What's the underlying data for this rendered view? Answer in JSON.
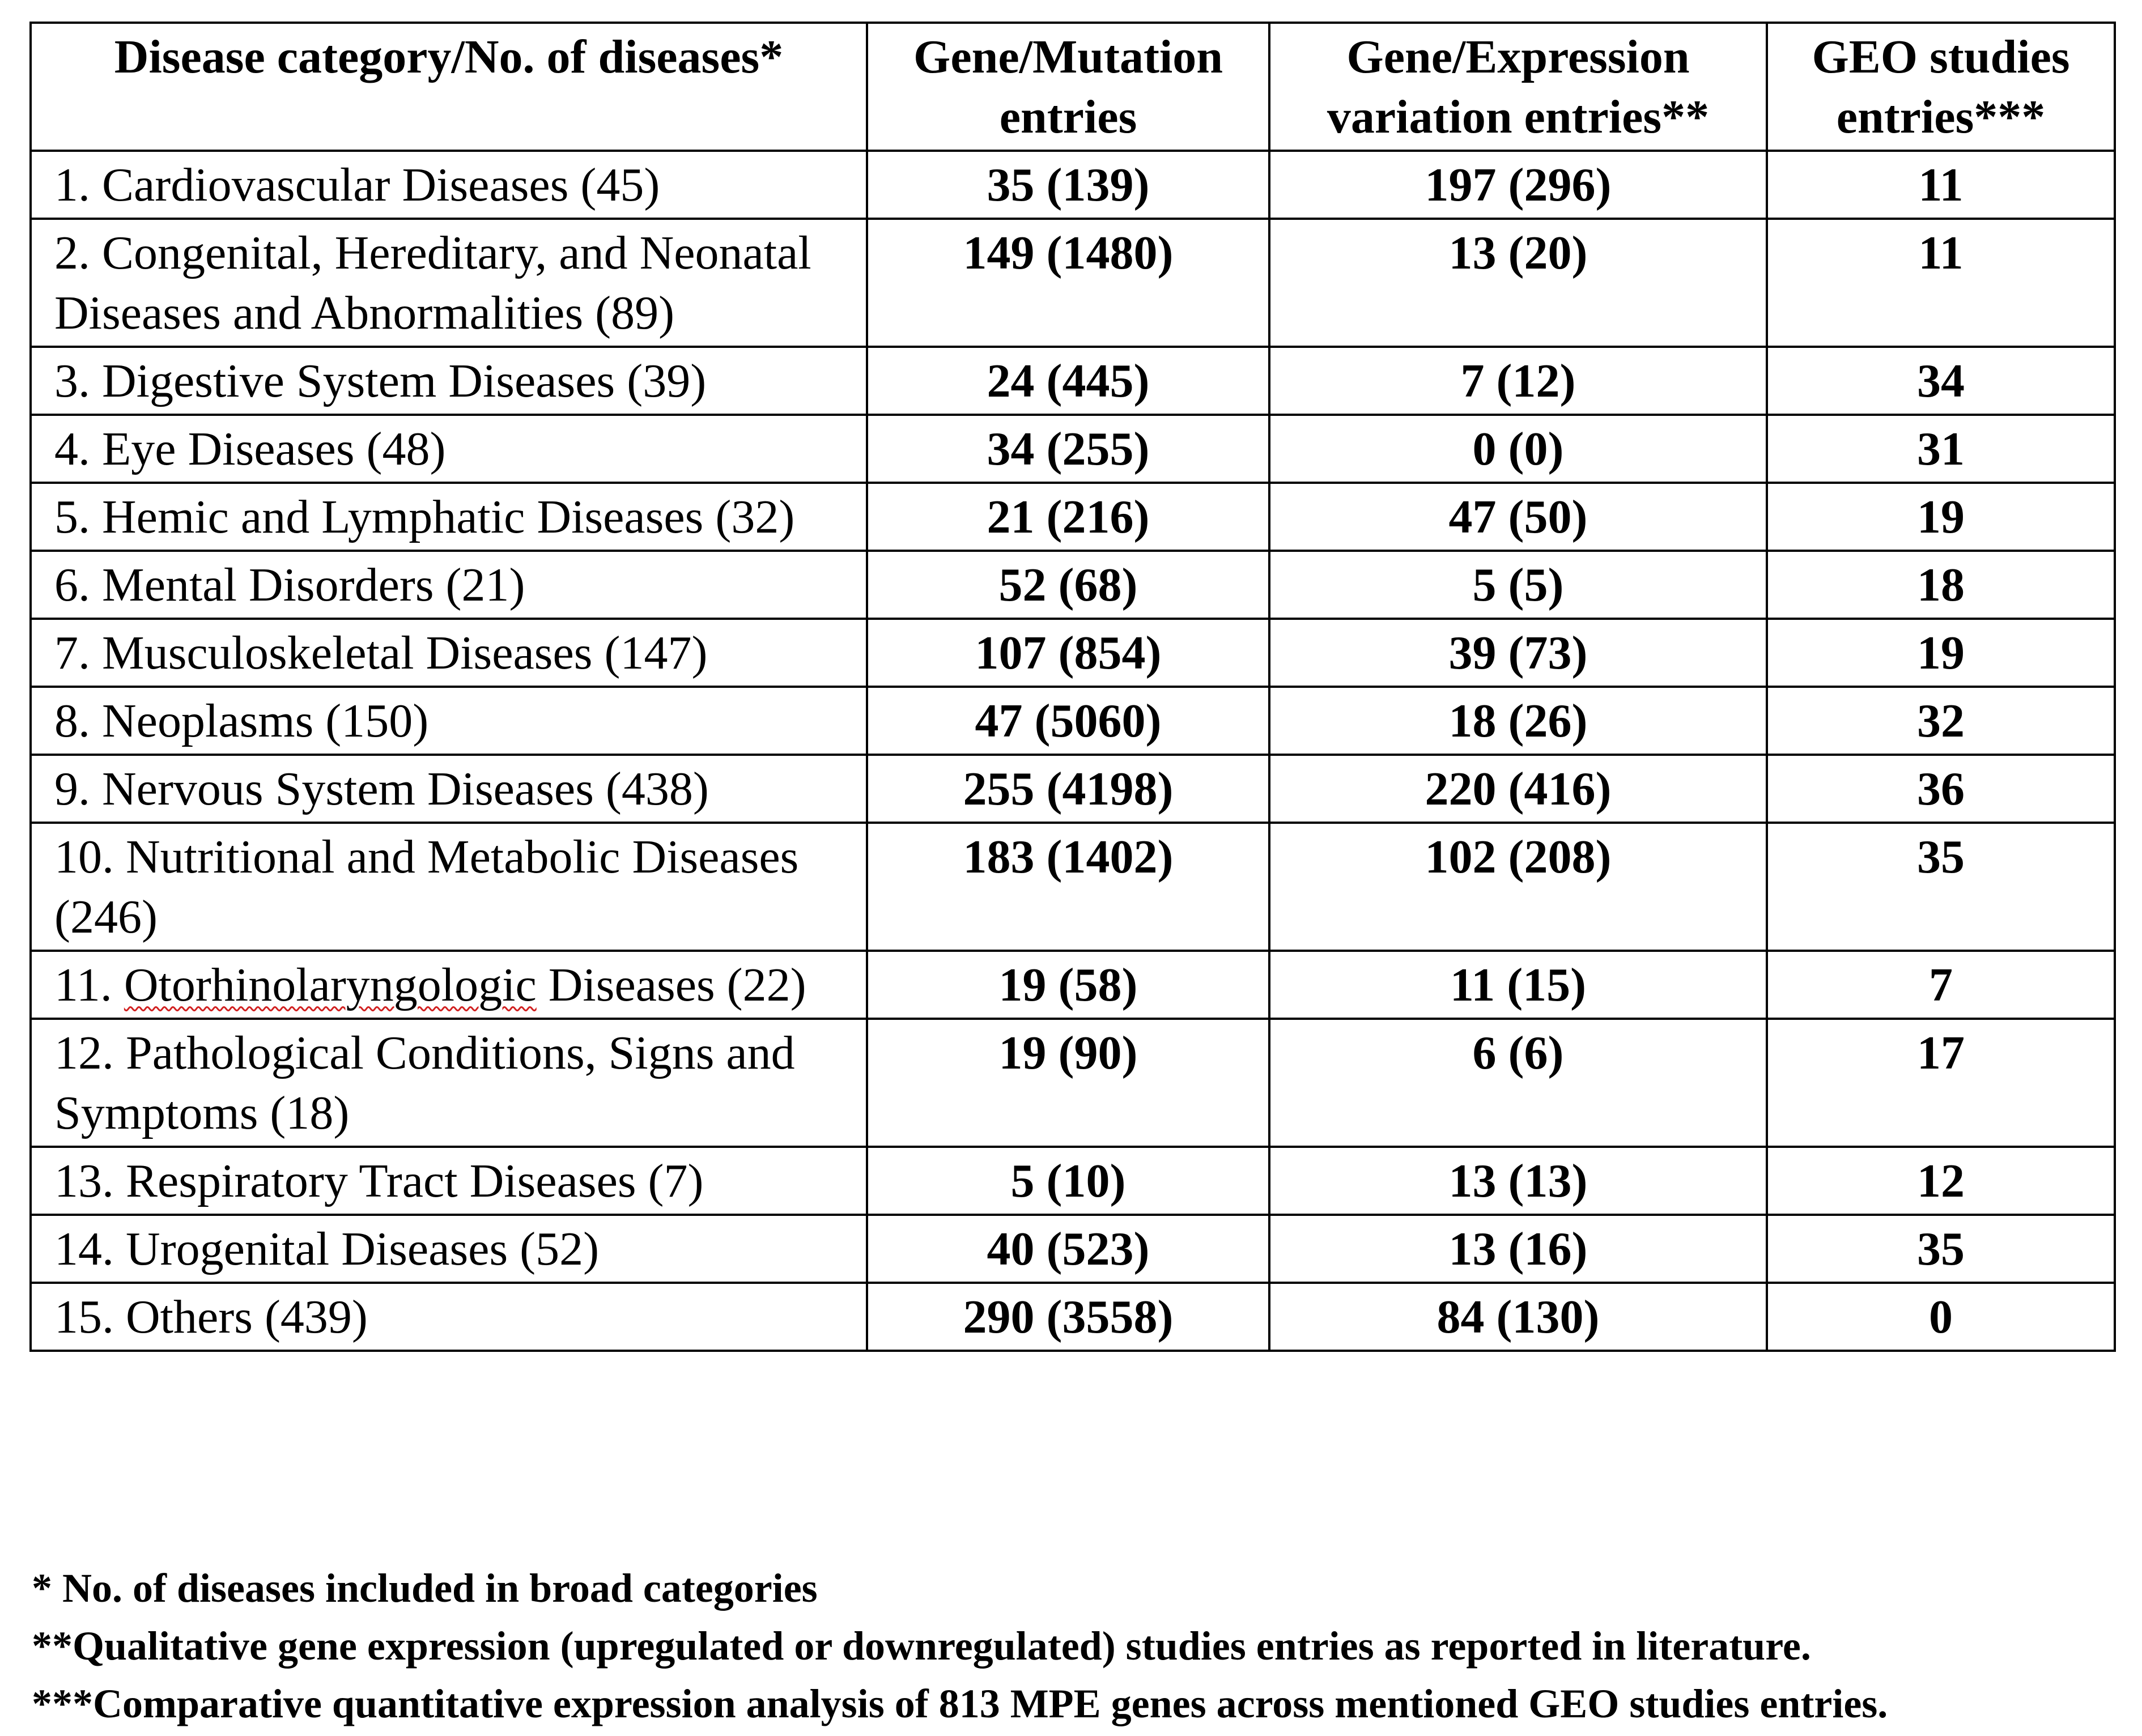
{
  "table": {
    "headers": {
      "category": "Disease category/No. of diseases*",
      "mutation_line1": "Gene/Mutation",
      "mutation_line2": "entries",
      "expression_line1": "Gene/Expression",
      "expression_line2": "variation entries**",
      "geo_line1": "GEO studies",
      "geo_line2": "entries***"
    },
    "rows": [
      {
        "category": "1. Cardiovascular Diseases (45)",
        "mutation": "35 (139)",
        "expression": "197 (296)",
        "geo": "11"
      },
      {
        "category": "2. Congenital, Hereditary, and Neonatal Diseases and Abnormalities (89)",
        "mutation": "149 (1480)",
        "expression": "13 (20)",
        "geo": "11"
      },
      {
        "category": "3. Digestive System Diseases (39)",
        "mutation": "24 (445)",
        "expression": "7 (12)",
        "geo": "34"
      },
      {
        "category": "4. Eye Diseases (48)",
        "mutation": "34 (255)",
        "expression": "0 (0)",
        "geo": "31"
      },
      {
        "category": "5. Hemic and Lymphatic Diseases (32)",
        "mutation": "21 (216)",
        "expression": "47 (50)",
        "geo": "19"
      },
      {
        "category": "6. Mental Disorders (21)",
        "mutation": "52 (68)",
        "expression": "5 (5)",
        "geo": "18"
      },
      {
        "category": "7. Musculoskeletal Diseases (147)",
        "mutation": "107 (854)",
        "expression": "39 (73)",
        "geo": "19"
      },
      {
        "category": "8. Neoplasms (150)",
        "mutation": "47 (5060)",
        "expression": "18 (26)",
        "geo": "32"
      },
      {
        "category": "9. Nervous System Diseases (438)",
        "mutation": "255 (4198)",
        "expression": "220 (416)",
        "geo": "36"
      },
      {
        "category": "10. Nutritional and Metabolic Diseases (246)",
        "mutation": "183 (1402)",
        "expression": "102 (208)",
        "geo": "35"
      },
      {
        "category_prefix": "11. ",
        "category_word": "Otorhinolaryngologic",
        "category_suffix": " Diseases (22)",
        "mutation": "19 (58)",
        "expression": "11 (15)",
        "geo": "7"
      },
      {
        "category": "12. Pathological Conditions, Signs and Symptoms (18)",
        "mutation": "19 (90)",
        "expression": "6 (6)",
        "geo": "17"
      },
      {
        "category": "13. Respiratory Tract Diseases (7)",
        "mutation": "5 (10)",
        "expression": "13 (13)",
        "geo": "12"
      },
      {
        "category": "14. Urogenital Diseases (52)",
        "mutation": "40 (523)",
        "expression": "13 (16)",
        "geo": "35"
      },
      {
        "category": "15. Others (439)",
        "mutation": "290 (3558)",
        "expression": "84 (130)",
        "geo": "0"
      }
    ]
  },
  "notes": [
    "* No. of diseases included in broad categories",
    "**Qualitative gene expression (upregulated or downregulated) studies entries as reported in literature.",
    "***Comparative quantitative expression analysis of 813 MPE genes across mentioned GEO studies entries."
  ]
}
